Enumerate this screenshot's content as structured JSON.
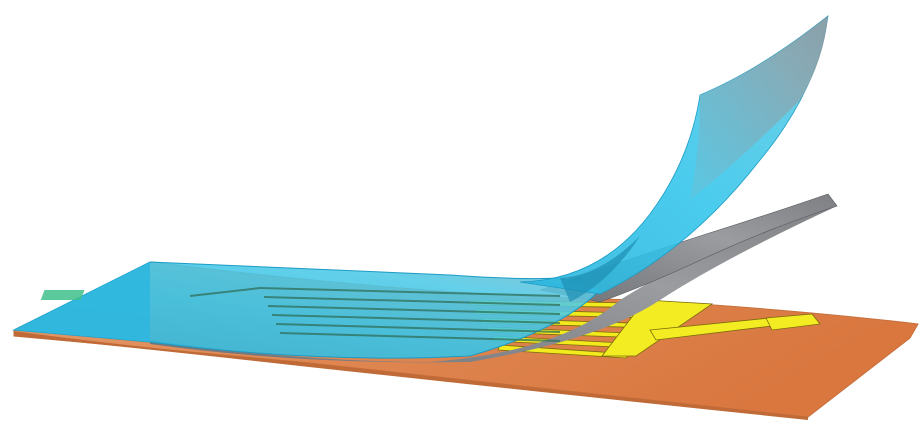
{
  "figure": {
    "layers": [
      {
        "id": "substrate",
        "color": "#e0824c",
        "edge_color": "#c06a38"
      },
      {
        "id": "electrodes",
        "color": "#f2ea1c",
        "edge_color": "#8a7a10"
      },
      {
        "id": "gray-film",
        "color": "#8e9094",
        "edge_color": "#5e6064"
      },
      {
        "id": "blue-film",
        "color": "#35c3e8",
        "edge_color": "#1a9fc8"
      }
    ],
    "electrode_fingers": 6,
    "labels": []
  }
}
